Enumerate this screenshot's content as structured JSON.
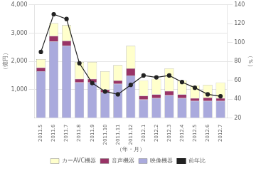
{
  "chart_data": {
    "type": "bar",
    "stacked": true,
    "grid": true,
    "legend": "bottom",
    "xlabel": "（年・月）",
    "ylabel": "（億円）",
    "y2label": "（％）",
    "categories": [
      "2011.5",
      "2011.6",
      "2011.7",
      "2011.8",
      "2011.9",
      "2011.10",
      "2011.11",
      "2011.12",
      "2012.1",
      "2012.2",
      "2012.3",
      "2012.4",
      "2012.5",
      "2012.6",
      "2012.7"
    ],
    "series": [
      {
        "name": "カーAVC機器",
        "color": "#ffffcc",
        "values": [
          300,
          450,
          550,
          600,
          600,
          650,
          550,
          800,
          550,
          550,
          800,
          500,
          450,
          450,
          550
        ]
      },
      {
        "name": "音声機器",
        "color": "#993366",
        "values": [
          130,
          200,
          180,
          130,
          130,
          100,
          120,
          250,
          130,
          130,
          150,
          130,
          100,
          120,
          100
        ]
      },
      {
        "name": "映像機器",
        "color": "#aaaadd",
        "values": [
          1650,
          2700,
          2550,
          1250,
          1250,
          900,
          1200,
          1500,
          650,
          700,
          800,
          700,
          600,
          600,
          600
        ]
      },
      {
        "name": "前年比",
        "color": "#222222",
        "type": "line",
        "marker": "circle",
        "axis": "y2",
        "values": [
          90,
          130,
          125,
          78,
          57,
          48,
          45,
          55,
          65,
          63,
          65,
          58,
          52,
          45,
          43
        ]
      }
    ],
    "ylim": [
      0,
      4000
    ],
    "yticks": [
      {
        "value": 1000,
        "label": "1,000"
      },
      {
        "value": 2000,
        "label": "2,000"
      },
      {
        "value": 3000,
        "label": "3,000"
      },
      {
        "value": 4000,
        "label": "4,000"
      }
    ],
    "y2lim": [
      20,
      140
    ],
    "y2ticks": [
      20,
      40,
      60,
      80,
      100,
      120,
      140
    ]
  }
}
